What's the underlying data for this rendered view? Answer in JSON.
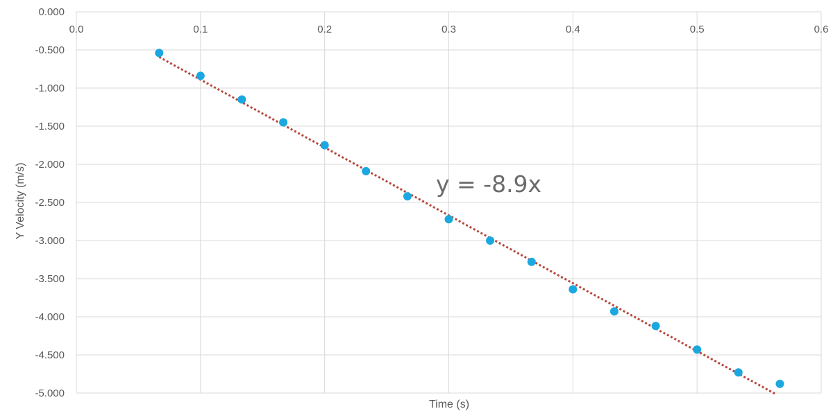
{
  "chart_data": {
    "type": "scatter",
    "title": "",
    "xlabel": "Time (s)",
    "ylabel": "Y Velocity (m/s)",
    "xlim": [
      0,
      0.6
    ],
    "ylim": [
      -5.0,
      0.0
    ],
    "x_ticks": [
      "0.0",
      "0.1",
      "0.2",
      "0.3",
      "0.4",
      "0.5",
      "0.6"
    ],
    "y_ticks": [
      "0.000",
      "-0.500",
      "-1.000",
      "-1.500",
      "-2.000",
      "-2.500",
      "-3.000",
      "-3.500",
      "-4.000",
      "-4.500",
      "-5.000"
    ],
    "x_tick_values": [
      0,
      0.1,
      0.2,
      0.3,
      0.4,
      0.5,
      0.6
    ],
    "y_tick_values": [
      0,
      -0.5,
      -1.0,
      -1.5,
      -2.0,
      -2.5,
      -3.0,
      -3.5,
      -4.0,
      -4.5,
      -5.0
    ],
    "grid": true,
    "x_axis_position": "top",
    "series": [
      {
        "color": "#1ba8e0",
        "points": [
          {
            "x": 0.0667,
            "y": -0.54
          },
          {
            "x": 0.1,
            "y": -0.84
          },
          {
            "x": 0.1333,
            "y": -1.15
          },
          {
            "x": 0.1667,
            "y": -1.45
          },
          {
            "x": 0.2,
            "y": -1.75
          },
          {
            "x": 0.2333,
            "y": -2.09
          },
          {
            "x": 0.2667,
            "y": -2.42
          },
          {
            "x": 0.3,
            "y": -2.72
          },
          {
            "x": 0.3333,
            "y": -3.0
          },
          {
            "x": 0.3667,
            "y": -3.28
          },
          {
            "x": 0.4,
            "y": -3.64
          },
          {
            "x": 0.4333,
            "y": -3.93
          },
          {
            "x": 0.4667,
            "y": -4.12
          },
          {
            "x": 0.5,
            "y": -4.43
          },
          {
            "x": 0.5333,
            "y": -4.73
          },
          {
            "x": 0.5667,
            "y": -4.88
          }
        ]
      }
    ],
    "trendline": {
      "type": "linear",
      "style": "dotted",
      "color": "#b5473b",
      "slope": -8.9,
      "intercept": 0,
      "x_range": [
        0.0667,
        0.563
      ],
      "equation": "y = -8.9x"
    },
    "colors": {
      "grid": "#d9d9d9",
      "text": "#595959",
      "marker": "#1ba8e0",
      "trendline": "#b5473b"
    }
  }
}
